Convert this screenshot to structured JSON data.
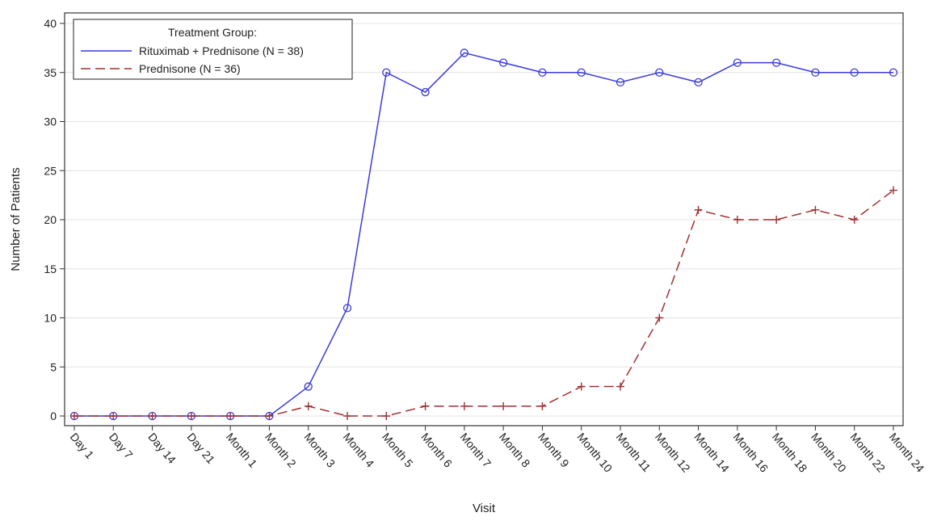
{
  "chart_data": {
    "type": "line",
    "title": "",
    "xlabel": "Visit",
    "ylabel": "Number of Patients",
    "ylim": [
      0,
      40
    ],
    "yticks": [
      0,
      5,
      10,
      15,
      20,
      25,
      30,
      35,
      40
    ],
    "grid": "horizontal",
    "legend_placement": "top-left",
    "legend_title": "Treatment Group:",
    "categories": [
      "Day 1",
      "Day 7",
      "Day 14",
      "Day 21",
      "Month 1",
      "Month 2",
      "Month 3",
      "Month 4",
      "Month 5",
      "Month 6",
      "Month 7",
      "Month 8",
      "Month 9",
      "Month 10",
      "Month 11",
      "Month 12",
      "Month 14",
      "Month 16",
      "Month 18",
      "Month 20",
      "Month 22",
      "Month 24"
    ],
    "series": [
      {
        "name": "Rituximab + Prednisone (N = 38)",
        "color": "#3b3bdb",
        "line_style": "solid",
        "marker": "circle",
        "values": [
          0,
          0,
          0,
          0,
          0,
          0,
          3,
          11,
          35,
          33,
          37,
          36,
          35,
          35,
          34,
          35,
          34,
          36,
          36,
          35,
          35,
          35
        ]
      },
      {
        "name": "Prednisone (N = 36)",
        "color": "#a03030",
        "line_style": "dashed",
        "marker": "plus",
        "values": [
          0,
          0,
          0,
          0,
          0,
          0,
          1,
          0,
          0,
          1,
          1,
          1,
          1,
          3,
          3,
          10,
          21,
          20,
          20,
          21,
          20,
          23
        ]
      }
    ]
  }
}
